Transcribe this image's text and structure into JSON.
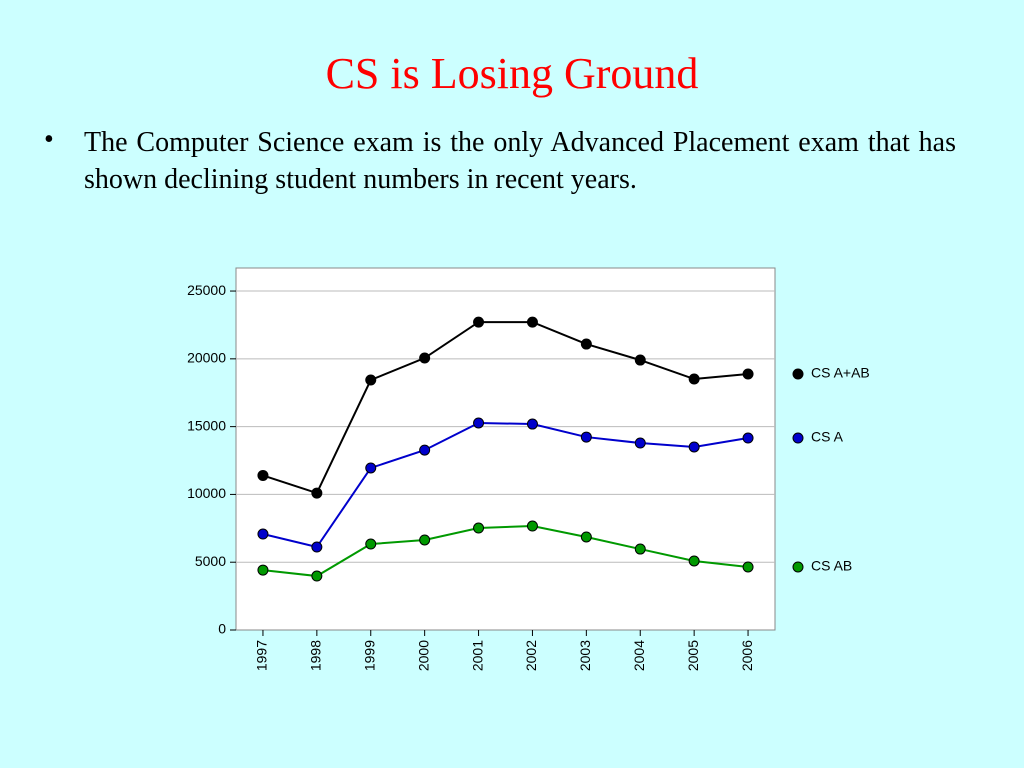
{
  "slide": {
    "title": "CS is Losing Ground",
    "bullets": [
      "The Computer Science exam is the only Advanced Placement exam that has shown declining student numbers in recent years."
    ]
  },
  "chart_data": {
    "type": "line",
    "categories": [
      "1997",
      "1998",
      "1999",
      "2000",
      "2001",
      "2002",
      "2003",
      "2004",
      "2005",
      "2006"
    ],
    "series": [
      {
        "name": "CS A+AB",
        "color": "#000000",
        "values": [
          11400,
          10100,
          18440,
          20060,
          22710,
          22710,
          21090,
          19910,
          18510,
          18880
        ]
      },
      {
        "name": "CS A",
        "color": "#0000cc",
        "values": [
          7080,
          6120,
          11950,
          13270,
          15270,
          15190,
          14230,
          13790,
          13500,
          14160
        ]
      },
      {
        "name": "CS AB",
        "color": "#009900",
        "values": [
          4420,
          3980,
          6340,
          6640,
          7520,
          7670,
          6860,
          5970,
          5090,
          4650
        ]
      }
    ],
    "ylim": [
      0,
      26700
    ],
    "yticks": [
      0,
      5000,
      10000,
      15000,
      20000,
      25000
    ],
    "grid": true
  }
}
